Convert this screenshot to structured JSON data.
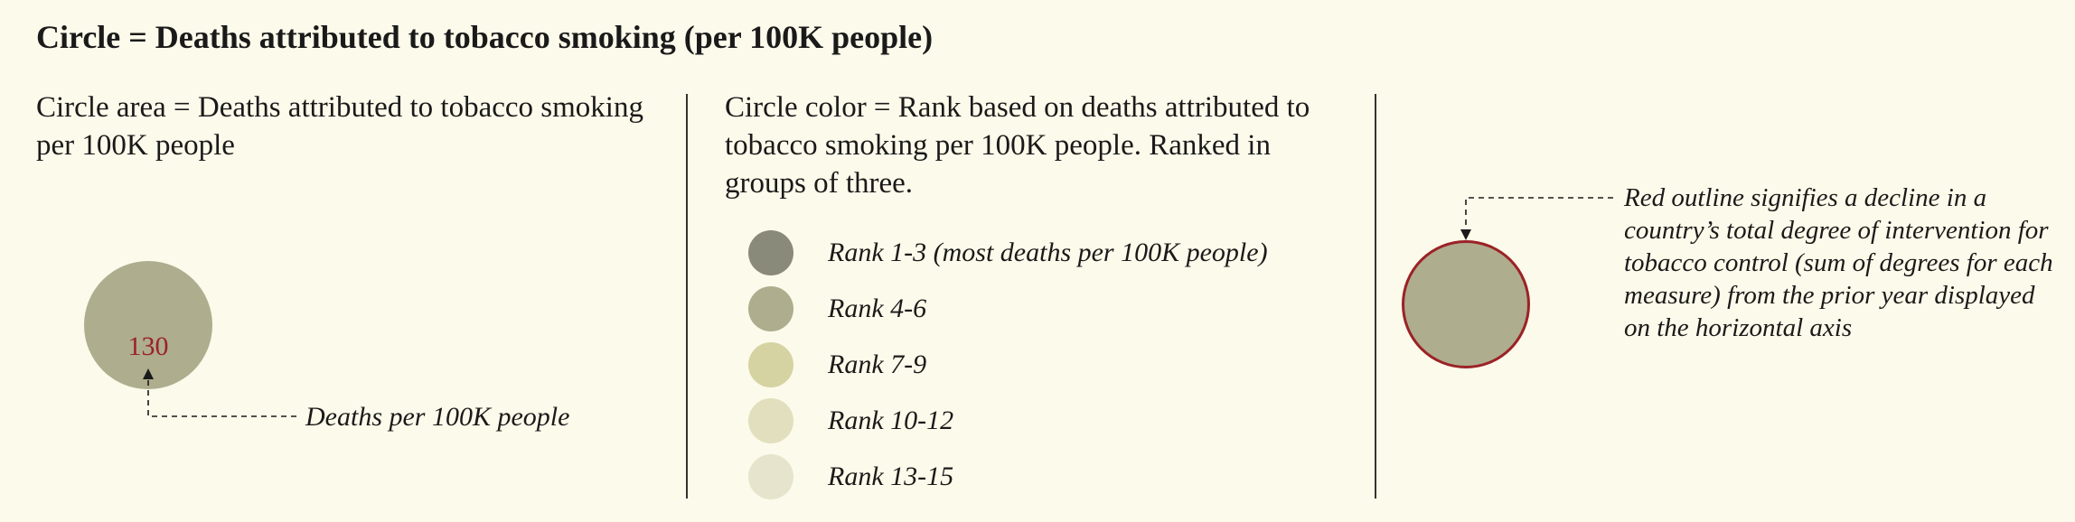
{
  "title": "Circle = Deaths attributed to tobacco smoking (per 100K people)",
  "size_section": {
    "description": "Circle area = Deaths attributed to tobacco smoking per 100K people",
    "example_value": "130",
    "annotation": "Deaths per 100K people"
  },
  "color_section": {
    "description": "Circle color = Rank based on deaths attributed to tobacco smoking per 100K people. Ranked in groups of three.",
    "ranks": [
      {
        "label": "Rank 1-3 (most deaths per 100K people)",
        "color": "#8a8a7a"
      },
      {
        "label": "Rank 4-6",
        "color": "#aead8e"
      },
      {
        "label": "Rank 7-9",
        "color": "#d6d3a2"
      },
      {
        "label": "Rank 10-12",
        "color": "#e1dfbd"
      },
      {
        "label": "Rank 13-15",
        "color": "#e7e4cd"
      }
    ]
  },
  "outline_section": {
    "note": "Red outline signifies a decline in a country’s total degree of intervention for tobacco control (sum of degrees for each measure) from the prior year displayed on the horizontal axis",
    "outline_color": "#9b2226",
    "fill_color": "#aead8e"
  },
  "colors": {
    "background": "#fcfaea",
    "value_text": "#9b2226"
  }
}
